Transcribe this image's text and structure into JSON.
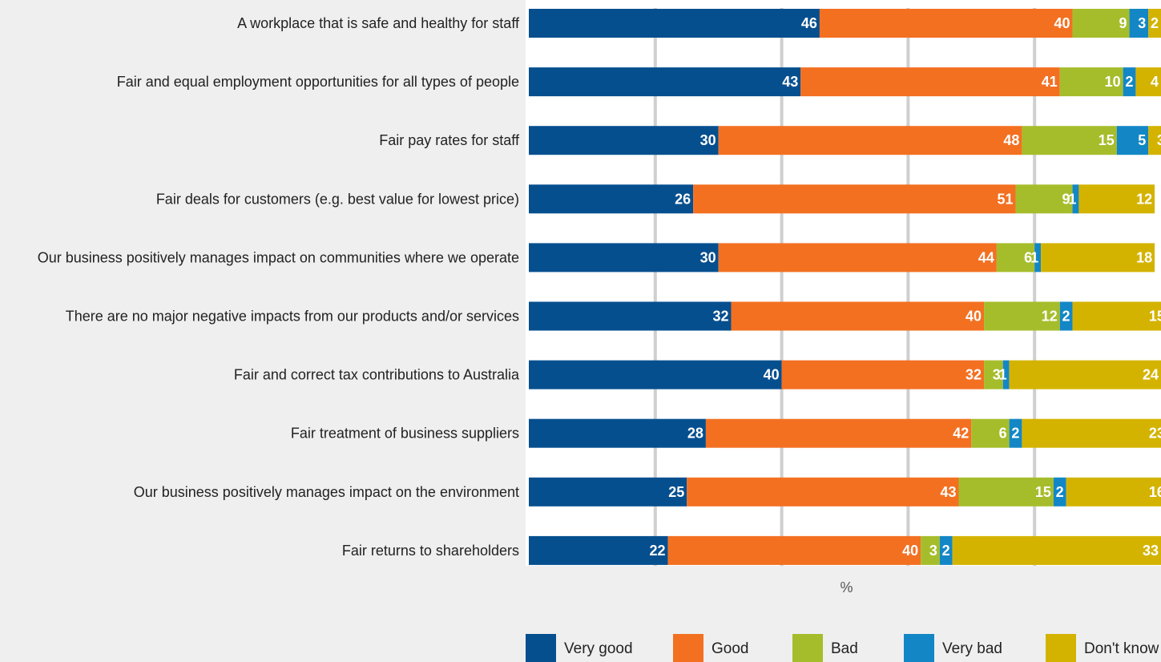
{
  "chart_data": {
    "type": "bar",
    "orientation": "horizontal",
    "stacked": true,
    "xlabel": "%",
    "xlim": [
      0,
      100
    ],
    "grid": true,
    "legend_position": "bottom",
    "categories": [
      "A workplace that is safe and healthy for staff",
      "Fair and equal employment opportunities for all types of people",
      "Fair pay rates for staff",
      "Fair deals for customers (e.g. best value for lowest price)",
      "Our business positively manages impact on communities where we operate",
      "There are no major negative impacts from our products and/or services",
      "Fair and correct tax contributions to Australia",
      "Fair treatment of business suppliers",
      "Our business positively manages impact on the environment",
      "Fair returns to shareholders"
    ],
    "series": [
      {
        "name": "Very good",
        "color": "#064f8f",
        "values": [
          46,
          43,
          30,
          26,
          30,
          32,
          40,
          28,
          25,
          22
        ]
      },
      {
        "name": "Good",
        "color": "#f37021",
        "values": [
          40,
          41,
          48,
          51,
          44,
          40,
          32,
          42,
          43,
          40
        ]
      },
      {
        "name": "Bad",
        "color": "#a6bd2b",
        "values": [
          9,
          10,
          15,
          9,
          6,
          12,
          3,
          6,
          15,
          3
        ]
      },
      {
        "name": "Very bad",
        "color": "#1387c6",
        "values": [
          3,
          2,
          5,
          1,
          1,
          2,
          1,
          2,
          2,
          2
        ]
      },
      {
        "name": "Don't know",
        "color": "#d4b300",
        "values": [
          2,
          4,
          3,
          12,
          18,
          15,
          24,
          23,
          16,
          33
        ]
      }
    ]
  }
}
